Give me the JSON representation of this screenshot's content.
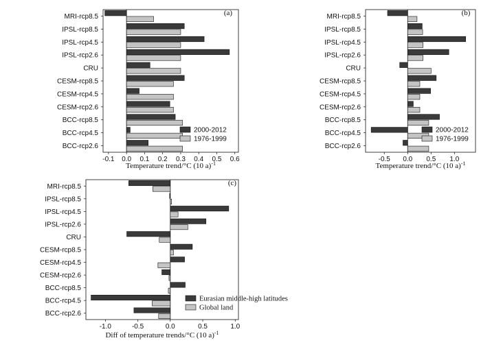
{
  "chart_data": [
    {
      "type": "bar",
      "panel_label": "(a)",
      "xlabel": "Temperature trend/°C (10 a)",
      "xlabel_sup": "-1",
      "xlim": [
        -0.13,
        0.62
      ],
      "xticks": [
        "-0.1",
        "0.0",
        "0.1",
        "0.2",
        "0.3",
        "0.4",
        "0.5",
        "0.6"
      ],
      "xtick_values": [
        -0.1,
        0.0,
        0.1,
        0.2,
        0.3,
        0.4,
        0.5,
        0.6
      ],
      "legend_position": "bottom-right",
      "categories": [
        "MRI-rcp8.5",
        "IPSL-rcp8.5",
        "IPSL-rcp4.5",
        "IPSL-rcp2.6",
        "CRU",
        "CESM-rcp8.5",
        "CESM-rcp4.5",
        "CESM-rcp2.6",
        "BCC-rcp8.5",
        "BCC-rcp4.5",
        "BCC-rcp2.6"
      ],
      "series": [
        {
          "name": "2000-2012",
          "color": "#3a3a3a",
          "values": [
            -0.12,
            0.32,
            0.43,
            0.57,
            0.13,
            0.32,
            0.07,
            0.24,
            0.27,
            0.02,
            0.12
          ]
        },
        {
          "name": "1976-1999",
          "color": "#c4c4c4",
          "values": [
            0.15,
            0.3,
            0.3,
            0.3,
            0.3,
            0.26,
            0.26,
            0.26,
            0.31,
            0.31,
            0.31
          ]
        }
      ]
    },
    {
      "type": "bar",
      "panel_label": "(b)",
      "xlabel": "Temperature trend/°C (10 a)",
      "xlabel_sup": "-1",
      "xlim": [
        -0.9,
        1.45
      ],
      "xticks": [
        "-0.5",
        "0.0",
        "0.5",
        "1.0"
      ],
      "xtick_values": [
        -0.5,
        0.0,
        0.5,
        1.0
      ],
      "legend_position": "bottom-right",
      "categories": [
        "MRI-rcp8.5",
        "IPSL-rcp8.5",
        "IPSL-rcp4.5",
        "IPSL-rcp2.6",
        "CRU",
        "CESM-rcp8.5",
        "CESM-rcp4.5",
        "CESM-rcp2.6",
        "BCC-rcp8.5",
        "BCC-rcp4.5",
        "BCC-rcp2.6"
      ],
      "series": [
        {
          "name": "2000-2012",
          "color": "#3a3a3a",
          "values": [
            -0.43,
            0.31,
            1.24,
            0.88,
            -0.17,
            0.61,
            0.49,
            0.12,
            0.68,
            -0.78,
            -0.1
          ]
        },
        {
          "name": "1976-1999",
          "color": "#c4c4c4",
          "values": [
            0.2,
            0.32,
            0.33,
            0.33,
            0.5,
            0.26,
            0.26,
            0.26,
            0.45,
            0.45,
            0.45
          ]
        }
      ]
    },
    {
      "type": "bar",
      "panel_label": "(c)",
      "xlabel": "Diff of temperature trends/°C (10 a)",
      "xlabel_sup": "-1",
      "xlim": [
        -1.3,
        1.05
      ],
      "xticks": [
        "-1.0",
        "-0.5",
        "0.0",
        "0.5",
        "1.0"
      ],
      "xtick_values": [
        -1.0,
        -0.5,
        0.0,
        0.5,
        1.0
      ],
      "legend_position": "bottom-right",
      "categories": [
        "MRI-rcp8.5",
        "IPSL-rcp8.5",
        "IPSL-rcp4.5",
        "IPSL-rcp2.6",
        "CRU",
        "CESM-rcp8.5",
        "CESM-rcp4.5",
        "CESM-rcp2.6",
        "BCC-rcp8.5",
        "BCC-rcp4.5",
        "BCC-rcp2.6"
      ],
      "series": [
        {
          "name": "Eurasian middle-high latitudes",
          "color": "#3a3a3a",
          "values": [
            -0.64,
            -0.01,
            0.9,
            0.55,
            -0.67,
            0.34,
            0.22,
            -0.13,
            0.23,
            -1.22,
            -0.56
          ]
        },
        {
          "name": "Global land",
          "color": "#c4c4c4",
          "values": [
            -0.27,
            0.02,
            0.12,
            0.27,
            -0.17,
            0.05,
            -0.19,
            -0.02,
            -0.03,
            -0.28,
            -0.18
          ]
        }
      ]
    }
  ]
}
